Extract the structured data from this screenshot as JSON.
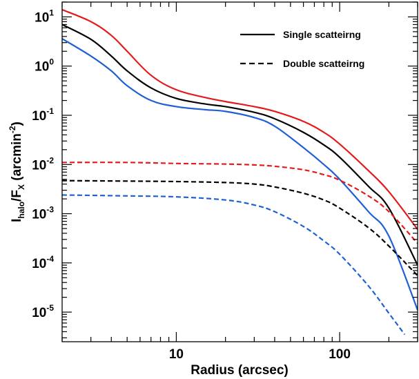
{
  "chart_data": {
    "type": "line",
    "xlabel": "Radius (arcsec)",
    "ylabel_base": "I",
    "ylabel_sub1": "halo",
    "ylabel_mid": "/F",
    "ylabel_sub2": "X",
    "ylabel_unit": " (arcmin",
    "ylabel_unit_sup": "-2",
    "ylabel_close": ")",
    "x_scale": "log",
    "y_scale": "log",
    "xlim": [
      2,
      300
    ],
    "ylim": [
      2.5e-06,
      20
    ],
    "grid": false,
    "legend_placement": "top-right",
    "x_ticks": [
      {
        "value": 10,
        "label": "10"
      },
      {
        "value": 100,
        "label": "100"
      }
    ],
    "y_ticks": [
      {
        "value": 10,
        "base": "10",
        "exp": "1"
      },
      {
        "value": 1,
        "base": "10",
        "exp": "0"
      },
      {
        "value": 0.1,
        "base": "10",
        "exp": "-1"
      },
      {
        "value": 0.01,
        "base": "10",
        "exp": "-2"
      },
      {
        "value": 0.001,
        "base": "10",
        "exp": "-3"
      },
      {
        "value": 0.0001,
        "base": "10",
        "exp": "-4"
      },
      {
        "value": 1e-05,
        "base": "10",
        "exp": "-5"
      }
    ],
    "legend": [
      {
        "label": "Single scatteirng",
        "style": "solid"
      },
      {
        "label": "Double scatteirng",
        "style": "dashed"
      }
    ],
    "series": [
      {
        "color": "#e41a1c",
        "style": "solid",
        "x": [
          2,
          3,
          4,
          5,
          7,
          10,
          15,
          20,
          30,
          40,
          60,
          80,
          100,
          150,
          200,
          300
        ],
        "y": [
          14,
          8,
          4.2,
          2.0,
          0.65,
          0.33,
          0.23,
          0.19,
          0.15,
          0.12,
          0.075,
          0.045,
          0.026,
          0.0075,
          0.0028,
          0.00048
        ]
      },
      {
        "color": "#000000",
        "style": "solid",
        "x": [
          2,
          3,
          4,
          5,
          7,
          10,
          15,
          20,
          30,
          40,
          60,
          80,
          100,
          150,
          200,
          300
        ],
        "y": [
          7.0,
          3.5,
          1.6,
          0.8,
          0.36,
          0.22,
          0.17,
          0.15,
          0.115,
          0.085,
          0.045,
          0.025,
          0.014,
          0.0036,
          0.0013,
          9e-05
        ]
      },
      {
        "color": "#1f5fd6",
        "style": "solid",
        "x": [
          2,
          3,
          4,
          5,
          7,
          10,
          15,
          20,
          30,
          40,
          60,
          80,
          100,
          150,
          200,
          300
        ],
        "y": [
          3.6,
          1.6,
          0.8,
          0.4,
          0.2,
          0.15,
          0.13,
          0.12,
          0.09,
          0.06,
          0.022,
          0.01,
          0.005,
          0.0011,
          0.00035,
          1.1e-05
        ]
      },
      {
        "color": "#e41a1c",
        "style": "dashed",
        "x": [
          2,
          5,
          10,
          20,
          30,
          40,
          60,
          80,
          100,
          150,
          200,
          300
        ],
        "y": [
          0.011,
          0.011,
          0.0105,
          0.0102,
          0.0098,
          0.0092,
          0.0078,
          0.0062,
          0.0048,
          0.0023,
          0.0011,
          0.00025
        ]
      },
      {
        "color": "#000000",
        "style": "dashed",
        "x": [
          2,
          5,
          10,
          20,
          30,
          40,
          60,
          80,
          100,
          150,
          200,
          300
        ],
        "y": [
          0.0047,
          0.0046,
          0.0045,
          0.0043,
          0.004,
          0.0035,
          0.0026,
          0.0019,
          0.0013,
          0.00052,
          0.00022,
          5.5e-05
        ]
      },
      {
        "color": "#1f5fd6",
        "style": "dashed",
        "x": [
          2,
          5,
          10,
          20,
          30,
          40,
          60,
          80,
          100,
          150,
          200,
          250
        ],
        "y": [
          0.0024,
          0.0023,
          0.0022,
          0.0019,
          0.0015,
          0.0011,
          0.00055,
          0.00028,
          0.00015,
          3.4e-05,
          9.5e-06,
          3.5e-06
        ]
      }
    ]
  }
}
